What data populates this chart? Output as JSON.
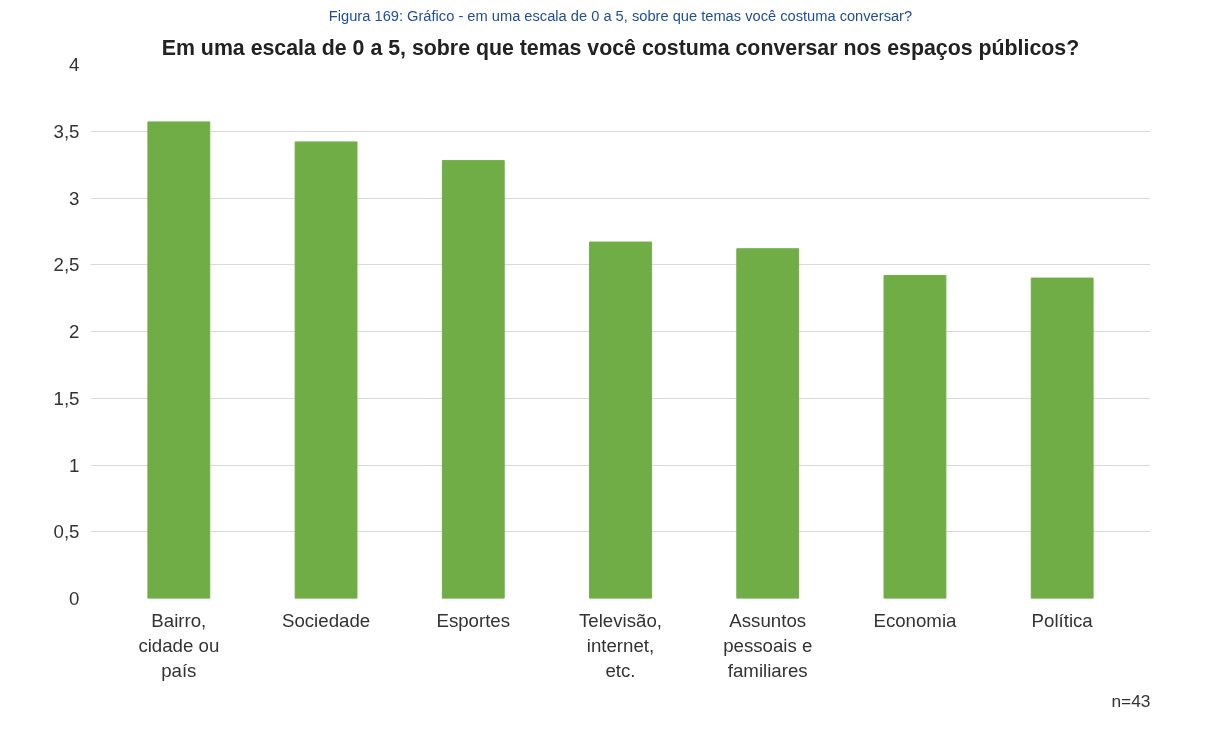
{
  "chart_data": {
    "type": "bar",
    "title": "Em uma escala de 0 a 5, sobre que temas você costuma conversar nos espaços públicos?",
    "categories": [
      "Bairro, cidade ou país",
      "Sociedade",
      "Esportes",
      "Televisão, internet, etc.",
      "Assuntos pessoais e familiares",
      "Economia",
      "Política"
    ],
    "values": [
      3.57,
      3.42,
      3.28,
      2.67,
      2.62,
      2.42,
      2.4
    ],
    "color": "#70ad47",
    "ylim": [
      0,
      4
    ],
    "yticks": [
      0,
      {
        "value": 0.5,
        "label": "0,5"
      },
      1,
      {
        "value": 1.5,
        "label": "1,5"
      },
      2,
      {
        "value": 2.5,
        "label": "2,5"
      },
      3,
      {
        "value": 3.5,
        "label": "3,5"
      },
      4
    ],
    "grid": "y",
    "annotations": [
      "Figura 169: Gráfico - em uma escala de 0 a 5, sobre que temas você costuma conversar?",
      "n=43"
    ]
  }
}
